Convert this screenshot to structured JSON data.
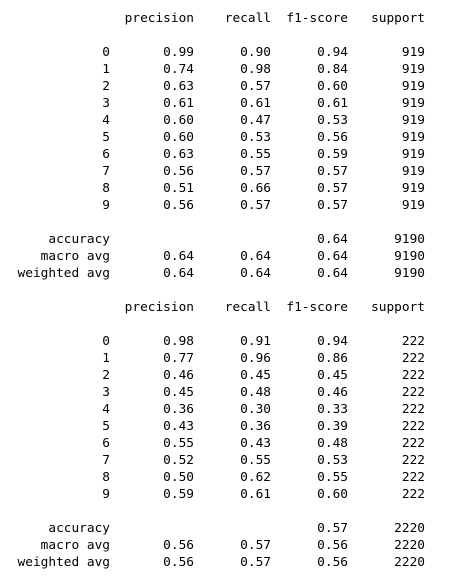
{
  "reports": [
    {
      "headers": [
        "precision",
        "recall",
        "f1-score",
        "support"
      ],
      "classes": [
        {
          "label": "0",
          "precision": "0.99",
          "recall": "0.90",
          "f1": "0.94",
          "support": "919"
        },
        {
          "label": "1",
          "precision": "0.74",
          "recall": "0.98",
          "f1": "0.84",
          "support": "919"
        },
        {
          "label": "2",
          "precision": "0.63",
          "recall": "0.57",
          "f1": "0.60",
          "support": "919"
        },
        {
          "label": "3",
          "precision": "0.61",
          "recall": "0.61",
          "f1": "0.61",
          "support": "919"
        },
        {
          "label": "4",
          "precision": "0.60",
          "recall": "0.47",
          "f1": "0.53",
          "support": "919"
        },
        {
          "label": "5",
          "precision": "0.60",
          "recall": "0.53",
          "f1": "0.56",
          "support": "919"
        },
        {
          "label": "6",
          "precision": "0.63",
          "recall": "0.55",
          "f1": "0.59",
          "support": "919"
        },
        {
          "label": "7",
          "precision": "0.56",
          "recall": "0.57",
          "f1": "0.57",
          "support": "919"
        },
        {
          "label": "8",
          "precision": "0.51",
          "recall": "0.66",
          "f1": "0.57",
          "support": "919"
        },
        {
          "label": "9",
          "precision": "0.56",
          "recall": "0.57",
          "f1": "0.57",
          "support": "919"
        }
      ],
      "summary": [
        {
          "label": "accuracy",
          "precision": "",
          "recall": "",
          "f1": "0.64",
          "support": "9190"
        },
        {
          "label": "macro avg",
          "precision": "0.64",
          "recall": "0.64",
          "f1": "0.64",
          "support": "9190"
        },
        {
          "label": "weighted avg",
          "precision": "0.64",
          "recall": "0.64",
          "f1": "0.64",
          "support": "9190"
        }
      ]
    },
    {
      "headers": [
        "precision",
        "recall",
        "f1-score",
        "support"
      ],
      "classes": [
        {
          "label": "0",
          "precision": "0.98",
          "recall": "0.91",
          "f1": "0.94",
          "support": "222"
        },
        {
          "label": "1",
          "precision": "0.77",
          "recall": "0.96",
          "f1": "0.86",
          "support": "222"
        },
        {
          "label": "2",
          "precision": "0.46",
          "recall": "0.45",
          "f1": "0.45",
          "support": "222"
        },
        {
          "label": "3",
          "precision": "0.45",
          "recall": "0.48",
          "f1": "0.46",
          "support": "222"
        },
        {
          "label": "4",
          "precision": "0.36",
          "recall": "0.30",
          "f1": "0.33",
          "support": "222"
        },
        {
          "label": "5",
          "precision": "0.43",
          "recall": "0.36",
          "f1": "0.39",
          "support": "222"
        },
        {
          "label": "6",
          "precision": "0.55",
          "recall": "0.43",
          "f1": "0.48",
          "support": "222"
        },
        {
          "label": "7",
          "precision": "0.52",
          "recall": "0.55",
          "f1": "0.53",
          "support": "222"
        },
        {
          "label": "8",
          "precision": "0.50",
          "recall": "0.62",
          "f1": "0.55",
          "support": "222"
        },
        {
          "label": "9",
          "precision": "0.59",
          "recall": "0.61",
          "f1": "0.60",
          "support": "222"
        }
      ],
      "summary": [
        {
          "label": "accuracy",
          "precision": "",
          "recall": "",
          "f1": "0.57",
          "support": "2220"
        },
        {
          "label": "macro avg",
          "precision": "0.56",
          "recall": "0.57",
          "f1": "0.56",
          "support": "2220"
        },
        {
          "label": "weighted avg",
          "precision": "0.56",
          "recall": "0.57",
          "f1": "0.56",
          "support": "2220"
        }
      ]
    }
  ]
}
